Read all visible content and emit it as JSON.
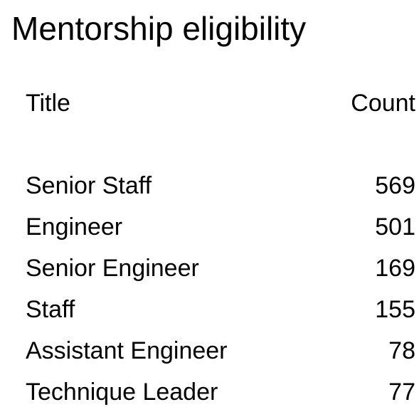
{
  "title": "Mentorship eligibility",
  "table": {
    "headers": {
      "title": "Title",
      "count": "Count"
    },
    "rows": [
      {
        "title": "Senior Staff",
        "count": "569"
      },
      {
        "title": "Engineer",
        "count": "501"
      },
      {
        "title": "Senior Engineer",
        "count": "169"
      },
      {
        "title": "Staff",
        "count": "155"
      },
      {
        "title": "Assistant Engineer",
        "count": "78"
      },
      {
        "title": "Technique Leader",
        "count": "77"
      }
    ]
  }
}
